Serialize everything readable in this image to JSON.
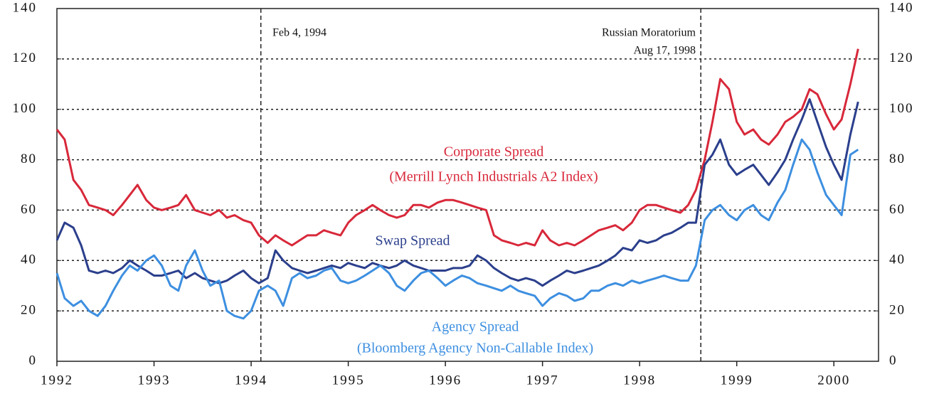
{
  "chart_data": {
    "type": "line",
    "x": [
      1992,
      1992.08,
      1992.17,
      1992.25,
      1992.33,
      1992.42,
      1992.5,
      1992.58,
      1992.67,
      1992.75,
      1992.83,
      1992.92,
      1993,
      1993.08,
      1993.17,
      1993.25,
      1993.33,
      1993.42,
      1993.5,
      1993.58,
      1993.67,
      1993.75,
      1993.83,
      1993.92,
      1994,
      1994.08,
      1994.17,
      1994.25,
      1994.33,
      1994.42,
      1994.5,
      1994.58,
      1994.67,
      1994.75,
      1994.83,
      1994.92,
      1995,
      1995.08,
      1995.17,
      1995.25,
      1995.33,
      1995.42,
      1995.5,
      1995.58,
      1995.67,
      1995.75,
      1995.83,
      1995.92,
      1996,
      1996.08,
      1996.17,
      1996.25,
      1996.33,
      1996.42,
      1996.5,
      1996.58,
      1996.67,
      1996.75,
      1996.83,
      1996.92,
      1997,
      1997.08,
      1997.17,
      1997.25,
      1997.33,
      1997.42,
      1997.5,
      1997.58,
      1997.67,
      1997.75,
      1997.83,
      1997.92,
      1998,
      1998.08,
      1998.17,
      1998.25,
      1998.33,
      1998.42,
      1998.5,
      1998.58,
      1998.67,
      1998.75,
      1998.83,
      1998.92,
      1999,
      1999.08,
      1999.17,
      1999.25,
      1999.33,
      1999.42,
      1999.5,
      1999.58,
      1999.67,
      1999.75,
      1999.83,
      1999.92,
      2000,
      2000.08,
      2000.17,
      2000.25
    ],
    "series": [
      {
        "name": "Corporate Spread",
        "color": "#d8283a",
        "values": [
          92,
          88,
          72,
          68,
          62,
          61,
          60,
          58,
          62,
          66,
          70,
          64,
          61,
          60,
          61,
          62,
          66,
          60,
          59,
          58,
          60,
          57,
          58,
          56,
          55,
          50,
          47,
          50,
          48,
          46,
          48,
          50,
          50,
          52,
          51,
          50,
          55,
          58,
          60,
          62,
          60,
          58,
          57,
          58,
          62,
          62,
          61,
          63,
          64,
          64,
          63,
          62,
          61,
          60,
          50,
          48,
          47,
          46,
          47,
          46,
          52,
          48,
          46,
          47,
          46,
          48,
          50,
          52,
          53,
          54,
          52,
          55,
          60,
          62,
          62,
          61,
          60,
          59,
          62,
          68,
          80,
          95,
          112,
          108,
          95,
          90,
          92,
          88,
          86,
          90,
          95,
          97,
          100,
          108,
          106,
          98,
          92,
          96,
          110,
          124
        ]
      },
      {
        "name": "Swap Spread",
        "color": "#2b3f8c",
        "values": [
          48,
          55,
          53,
          46,
          36,
          35,
          36,
          35,
          37,
          40,
          38,
          36,
          34,
          34,
          35,
          36,
          33,
          35,
          33,
          32,
          31,
          32,
          34,
          36,
          33,
          31,
          33,
          44,
          40,
          37,
          36,
          35,
          36,
          37,
          38,
          37,
          39,
          38,
          37,
          39,
          38,
          37,
          38,
          40,
          38,
          37,
          36,
          36,
          36,
          37,
          37,
          38,
          42,
          40,
          37,
          35,
          33,
          32,
          33,
          32,
          30,
          32,
          34,
          36,
          35,
          36,
          37,
          38,
          40,
          42,
          45,
          44,
          48,
          47,
          48,
          50,
          51,
          53,
          55,
          55,
          78,
          82,
          88,
          78,
          74,
          76,
          78,
          74,
          70,
          75,
          80,
          88,
          96,
          104,
          95,
          85,
          78,
          72,
          90,
          103
        ]
      },
      {
        "name": "Agency Spread",
        "color": "#3d8fe0",
        "values": [
          35,
          25,
          22,
          24,
          20,
          18,
          22,
          28,
          34,
          38,
          36,
          40,
          42,
          38,
          30,
          28,
          38,
          44,
          36,
          30,
          32,
          20,
          18,
          17,
          20,
          28,
          30,
          28,
          22,
          33,
          35,
          33,
          34,
          36,
          37,
          32,
          31,
          32,
          34,
          36,
          38,
          35,
          30,
          28,
          32,
          35,
          36,
          33,
          30,
          32,
          34,
          33,
          31,
          30,
          29,
          28,
          30,
          28,
          27,
          26,
          22,
          25,
          27,
          26,
          24,
          25,
          28,
          28,
          30,
          31,
          30,
          32,
          31,
          32,
          33,
          34,
          33,
          32,
          32,
          38,
          56,
          60,
          62,
          58,
          56,
          60,
          62,
          58,
          56,
          63,
          68,
          78,
          88,
          84,
          75,
          66,
          62,
          58,
          82,
          84
        ]
      }
    ],
    "xlim": [
      1992,
      2000.46
    ],
    "xticks": [
      1992,
      1993,
      1994,
      1995,
      1996,
      1997,
      1998,
      1999,
      2000
    ],
    "ylim": [
      0,
      140
    ],
    "yticks": [
      0,
      20,
      40,
      60,
      80,
      100,
      120,
      140
    ],
    "y2lim": [
      0,
      140
    ],
    "y2ticks": [
      0,
      20,
      40,
      60,
      80,
      100,
      120,
      140
    ],
    "grid": true,
    "vlines": [
      1994.1,
      1998.63
    ],
    "annotations": [
      {
        "text": "Feb 4, 1994",
        "color": "#111111"
      },
      {
        "text": "Russian Moratorium",
        "color": "#111111"
      },
      {
        "text": "Aug 17, 1998",
        "color": "#111111"
      },
      {
        "text": "Corporate Spread",
        "color": "#d8283a"
      },
      {
        "text": "(Merrill Lynch Industrials A2 Index)",
        "color": "#d8283a"
      },
      {
        "text": "Swap Spread",
        "color": "#2b3f8c"
      },
      {
        "text": "Agency Spread",
        "color": "#3d8fe0"
      },
      {
        "text": "(Bloomberg Agency Non-Callable Index)",
        "color": "#3d8fe0"
      }
    ]
  }
}
